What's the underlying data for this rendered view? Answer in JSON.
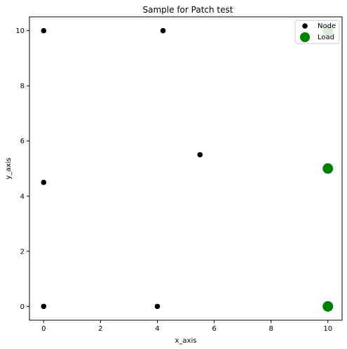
{
  "chart_data": {
    "type": "scatter",
    "title": "Sample for Patch test",
    "xlabel": "x_axis",
    "ylabel": "y_axis",
    "xlim": [
      -0.5,
      10.5
    ],
    "ylim": [
      -0.5,
      10.5
    ],
    "xticks": [
      0,
      2,
      4,
      6,
      8,
      10
    ],
    "yticks": [
      0,
      2,
      4,
      6,
      8,
      10
    ],
    "grid": false,
    "legend": "top-right",
    "series": [
      {
        "name": "Node",
        "color": "#000000",
        "marker": "small-circle",
        "points": [
          [
            0,
            10
          ],
          [
            4.2,
            10
          ],
          [
            5.5,
            5.5
          ],
          [
            0,
            4.5
          ],
          [
            0,
            0
          ],
          [
            4,
            0
          ]
        ]
      },
      {
        "name": "Load",
        "color": "#008000",
        "marker": "large-circle",
        "points": [
          [
            10,
            10
          ],
          [
            10,
            5
          ],
          [
            10,
            0
          ]
        ]
      }
    ]
  }
}
